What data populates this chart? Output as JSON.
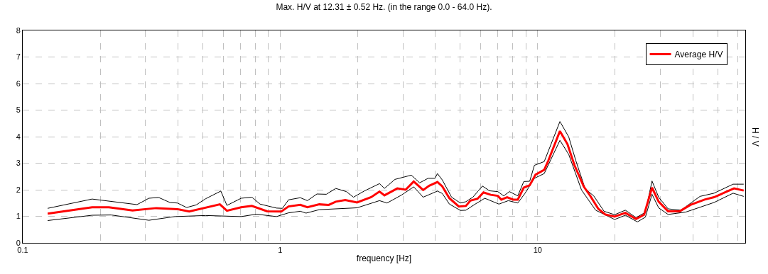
{
  "chart_data": {
    "type": "line",
    "title": "Max. H/V at 12.31 ± 0.52 Hz. (in the range 0.0 - 64.0 Hz).",
    "xlabel": "frequency [Hz]",
    "ylabel": "H / V",
    "log": "x",
    "grid": true,
    "legend": "top right",
    "marker": "none",
    "line_style": "solid",
    "xlim": [
      0.1,
      64
    ],
    "ylim": [
      0,
      8
    ],
    "xticks": [
      {
        "value": 0.1,
        "label": "0.1"
      },
      {
        "value": 0.2,
        "label": null
      },
      {
        "value": 0.3,
        "label": null
      },
      {
        "value": 0.4,
        "label": null
      },
      {
        "value": 0.5,
        "label": null
      },
      {
        "value": 0.6,
        "label": null
      },
      {
        "value": 0.7,
        "label": null
      },
      {
        "value": 0.8,
        "label": null
      },
      {
        "value": 0.9,
        "label": null
      },
      1,
      {
        "value": 2,
        "label": null
      },
      {
        "value": 3,
        "label": null
      },
      {
        "value": 4,
        "label": null
      },
      {
        "value": 5,
        "label": null
      },
      {
        "value": 6,
        "label": null
      },
      {
        "value": 7,
        "label": null
      },
      {
        "value": 8,
        "label": null
      },
      {
        "value": 9,
        "label": null
      },
      10,
      {
        "value": 20,
        "label": null
      },
      {
        "value": 30,
        "label": null
      },
      {
        "value": 40,
        "label": null
      },
      {
        "value": 50,
        "label": null
      },
      {
        "value": 60,
        "label": null
      }
    ],
    "yticks": [
      0,
      1,
      2,
      3,
      4,
      5,
      6,
      7,
      8
    ],
    "series": [
      {
        "color": "#000000",
        "x": [
          0.125,
          0.186,
          0.278,
          0.309,
          0.337,
          0.373,
          0.399,
          0.433,
          0.472,
          0.513,
          0.588,
          0.621,
          0.705,
          0.776,
          0.835,
          0.967,
          1.02,
          1.077,
          1.197,
          1.275,
          1.388,
          1.511,
          1.643,
          1.807,
          1.925,
          2.118,
          2.43,
          2.54,
          2.79,
          3.23,
          3.48,
          3.75,
          3.99,
          4.08,
          4.26,
          4.63,
          5.01,
          5.26,
          5.6,
          6.1,
          6.5,
          7.0,
          7.38,
          7.77,
          8.37,
          8.83,
          9.31,
          9.71,
          10.6,
          12.2,
          13.2,
          14.06,
          15.3,
          16.5,
          18.1,
          19.9,
          21.9,
          24.1,
          26.2,
          27.8,
          29.5,
          32.1,
          36.0,
          42.7,
          48.4,
          57.4,
          63.1
        ],
        "values": [
          1.3,
          1.65,
          1.44,
          1.68,
          1.71,
          1.52,
          1.5,
          1.33,
          1.43,
          1.66,
          1.95,
          1.41,
          1.68,
          1.72,
          1.46,
          1.31,
          1.3,
          1.62,
          1.7,
          1.59,
          1.84,
          1.83,
          2.05,
          1.93,
          1.72,
          1.95,
          2.23,
          2.05,
          2.39,
          2.55,
          2.26,
          2.43,
          2.43,
          2.61,
          2.37,
          1.72,
          1.5,
          1.55,
          1.72,
          2.14,
          1.96,
          1.93,
          1.77,
          1.93,
          1.77,
          2.31,
          2.32,
          2.92,
          3.06,
          4.57,
          3.99,
          3.1,
          2.03,
          1.77,
          1.19,
          1.06,
          1.23,
          0.95,
          1.15,
          2.33,
          1.72,
          1.28,
          1.23,
          1.75,
          1.87,
          2.21,
          2.21
        ]
      },
      {
        "color": "#000000",
        "x": [
          0.125,
          0.186,
          0.2205,
          0.309,
          0.39,
          0.513,
          0.705,
          0.809,
          0.967,
          1.077,
          1.197,
          1.26,
          1.418,
          1.988,
          2.43,
          2.6,
          2.97,
          3.3,
          3.59,
          4.08,
          4.26,
          4.54,
          5.01,
          5.26,
          5.72,
          6.23,
          7.07,
          7.69,
          8.37,
          8.92,
          9.71,
          10.6,
          12.2,
          13.2,
          14.8,
          16.8,
          19.9,
          21.9,
          24.4,
          26.2,
          27.8,
          29.5,
          32.1,
          37.6,
          48.4,
          57.4,
          63.1
        ],
        "values": [
          0.84,
          1.04,
          1.05,
          0.85,
          0.99,
          1.03,
          0.99,
          1.08,
          0.99,
          1.13,
          1.19,
          1.12,
          1.25,
          1.32,
          1.59,
          1.5,
          1.81,
          2.11,
          1.72,
          1.95,
          1.86,
          1.46,
          1.22,
          1.23,
          1.46,
          1.68,
          1.46,
          1.59,
          1.5,
          1.86,
          2.43,
          2.61,
          3.86,
          3.33,
          1.99,
          1.23,
          0.88,
          1.04,
          0.79,
          0.97,
          1.83,
          1.32,
          1.07,
          1.16,
          1.52,
          1.87,
          1.75
        ]
      },
      {
        "name": "Average H/V",
        "color": "#ff0000",
        "x": [
          0.125,
          0.186,
          0.216,
          0.267,
          0.33,
          0.399,
          0.443,
          0.583,
          0.621,
          0.705,
          0.776,
          0.89,
          1.01,
          1.077,
          1.197,
          1.275,
          1.418,
          1.543,
          1.643,
          1.789,
          1.988,
          2.256,
          2.43,
          2.54,
          2.85,
          3.07,
          3.3,
          3.59,
          3.79,
          4.08,
          4.26,
          4.54,
          4.94,
          5.26,
          5.48,
          5.84,
          6.16,
          6.57,
          7.0,
          7.22,
          7.61,
          8.03,
          8.37,
          8.83,
          9.31,
          9.81,
          10.6,
          11.0,
          12.2,
          13.05,
          13.9,
          15.1,
          16.0,
          17.2,
          18.3,
          19.9,
          21.9,
          24.1,
          25.9,
          27.8,
          29.5,
          32.1,
          35.6,
          39.2,
          44.5,
          48.4,
          57.9,
          63.1
        ],
        "values": [
          1.1,
          1.34,
          1.34,
          1.22,
          1.31,
          1.27,
          1.18,
          1.45,
          1.21,
          1.34,
          1.39,
          1.19,
          1.18,
          1.37,
          1.43,
          1.34,
          1.45,
          1.43,
          1.55,
          1.61,
          1.52,
          1.72,
          1.93,
          1.79,
          2.05,
          2.0,
          2.31,
          1.99,
          2.15,
          2.29,
          2.13,
          1.68,
          1.37,
          1.39,
          1.59,
          1.66,
          1.9,
          1.81,
          1.77,
          1.63,
          1.72,
          1.63,
          1.63,
          2.08,
          2.17,
          2.57,
          2.75,
          3.1,
          4.21,
          3.72,
          2.92,
          2.12,
          1.77,
          1.28,
          1.07,
          0.99,
          1.13,
          0.9,
          1.06,
          2.08,
          1.55,
          1.19,
          1.19,
          1.43,
          1.63,
          1.72,
          2.05,
          1.97
        ]
      }
    ]
  }
}
